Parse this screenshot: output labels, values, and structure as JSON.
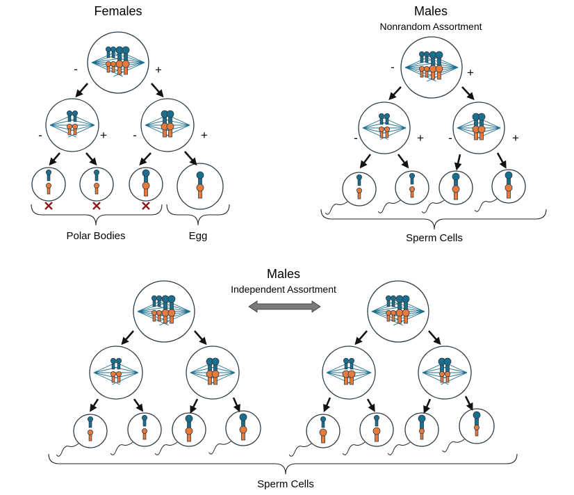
{
  "labels": {
    "females_title": "Females",
    "males_nonrandom_title": "Males",
    "males_nonrandom_subtitle": "Nonrandom Assortment",
    "males_independent_title": "Males",
    "males_independent_subtitle": "Independent Assortment",
    "polar_bodies": "Polar Bodies",
    "egg": "Egg",
    "sperm_cells_top": "Sperm Cells",
    "sperm_cells_bottom": "Sperm Cells",
    "minus": "-",
    "plus": "+"
  },
  "colors": {
    "blue_chromosome": "#1b6f8e",
    "orange_chromosome": "#e87a3c",
    "chromosome_outline": "#2e3b44",
    "arrow": "#111111",
    "x_mark": "#8b1a1a",
    "double_arrow_fill": "#7a7a7a"
  },
  "icons": {
    "failed_cell": "x-mark-icon",
    "comparison": "double-arrow-icon",
    "division": "arrow-icon"
  }
}
